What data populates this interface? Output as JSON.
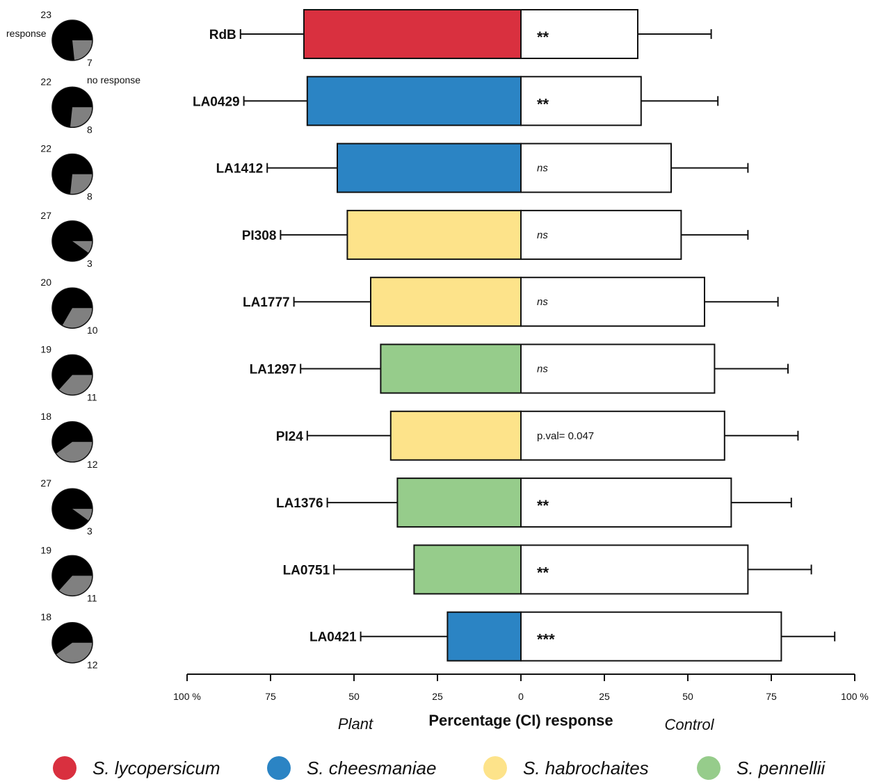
{
  "chart_data": {
    "type": "bar",
    "xlabel": "Percentage (CI) response",
    "left_side_label": "Plant",
    "right_side_label": "Control",
    "x_ticks": [
      "100 %",
      "75",
      "50",
      "25",
      "0",
      "25",
      "50",
      "75",
      "100 %"
    ],
    "xlim": [
      -100,
      100
    ],
    "legend_placement": "bottom",
    "colors": {
      "S. lycopersicum": "#d9303f",
      "S. cheesmaniae": "#2b84c4",
      "S. habrochaites": "#fde38a",
      "S. pennellii": "#96cc8b",
      "control": "#ffffff",
      "pie_response": "#000000",
      "pie_no_response": "#808080"
    },
    "legend": [
      {
        "name": "S. lycopersicum",
        "color": "#d9303f"
      },
      {
        "name": "S. cheesmaniae",
        "color": "#2b84c4"
      },
      {
        "name": "S. habrochaites",
        "color": "#fde38a"
      },
      {
        "name": "S. pennellii",
        "color": "#96cc8b"
      }
    ],
    "pie_legend": {
      "response_label": "response",
      "no_response_label": "no response"
    },
    "rows": [
      {
        "label": "RdB",
        "species": "S. lycopersicum",
        "plant": 65,
        "plant_ci_low": 84,
        "control": 35,
        "control_ci_high": 57,
        "significance": "**",
        "sig_style": "stars",
        "response": 23,
        "no_response": 7
      },
      {
        "label": "LA0429",
        "species": "S. cheesmaniae",
        "plant": 64,
        "plant_ci_low": 83,
        "control": 36,
        "control_ci_high": 59,
        "significance": "**",
        "sig_style": "stars",
        "response": 22,
        "no_response": 8
      },
      {
        "label": "LA1412",
        "species": "S. cheesmaniae",
        "plant": 55,
        "plant_ci_low": 76,
        "control": 45,
        "control_ci_high": 68,
        "significance": "ns",
        "sig_style": "italic",
        "response": 22,
        "no_response": 8
      },
      {
        "label": "PI308",
        "species": "S. habrochaites",
        "plant": 52,
        "plant_ci_low": 72,
        "control": 48,
        "control_ci_high": 68,
        "significance": "ns",
        "sig_style": "italic",
        "response": 27,
        "no_response": 3
      },
      {
        "label": "LA1777",
        "species": "S. habrochaites",
        "plant": 45,
        "plant_ci_low": 68,
        "control": 55,
        "control_ci_high": 77,
        "significance": "ns",
        "sig_style": "italic",
        "response": 20,
        "no_response": 10
      },
      {
        "label": "LA1297",
        "species": "S. pennellii",
        "plant": 42,
        "plant_ci_low": 66,
        "control": 58,
        "control_ci_high": 80,
        "significance": "ns",
        "sig_style": "italic",
        "response": 19,
        "no_response": 11
      },
      {
        "label": "PI24",
        "species": "S. habrochaites",
        "plant": 39,
        "plant_ci_low": 64,
        "control": 61,
        "control_ci_high": 83,
        "significance": "p.val= 0.047",
        "sig_style": "plain",
        "response": 18,
        "no_response": 12
      },
      {
        "label": "LA1376",
        "species": "S. pennellii",
        "plant": 37,
        "plant_ci_low": 58,
        "control": 63,
        "control_ci_high": 81,
        "significance": "**",
        "sig_style": "stars",
        "response": 27,
        "no_response": 3
      },
      {
        "label": "LA0751",
        "species": "S. pennellii",
        "plant": 32,
        "plant_ci_low": 56,
        "control": 68,
        "control_ci_high": 87,
        "significance": "**",
        "sig_style": "stars",
        "response": 19,
        "no_response": 11
      },
      {
        "label": "LA0421",
        "species": "S. cheesmaniae",
        "plant": 22,
        "plant_ci_low": 48,
        "control": 78,
        "control_ci_high": 94,
        "significance": "***",
        "sig_style": "stars",
        "response": 18,
        "no_response": 12
      }
    ]
  }
}
